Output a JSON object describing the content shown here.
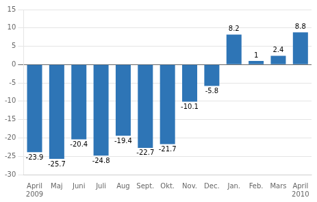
{
  "chart_data": {
    "type": "bar",
    "categories": [
      "April\n2009",
      "Maj",
      "Juni",
      "Juli",
      "Aug",
      "Sept.",
      "Okt.",
      "Nov.",
      "Dec.",
      "Jan.",
      "Feb.",
      "Mars",
      "April\n2010"
    ],
    "values": [
      -23.9,
      -25.7,
      -20.4,
      -24.8,
      -19.4,
      -22.7,
      -21.7,
      -10.1,
      -5.8,
      8.2,
      1.0,
      2.4,
      8.8
    ],
    "color": "#2E75B6",
    "ylim": [
      -30,
      15
    ],
    "yticks": [
      -30,
      -25,
      -20,
      -15,
      -10,
      -5,
      0,
      5,
      10,
      15
    ],
    "grid": true,
    "data_labels": true
  }
}
